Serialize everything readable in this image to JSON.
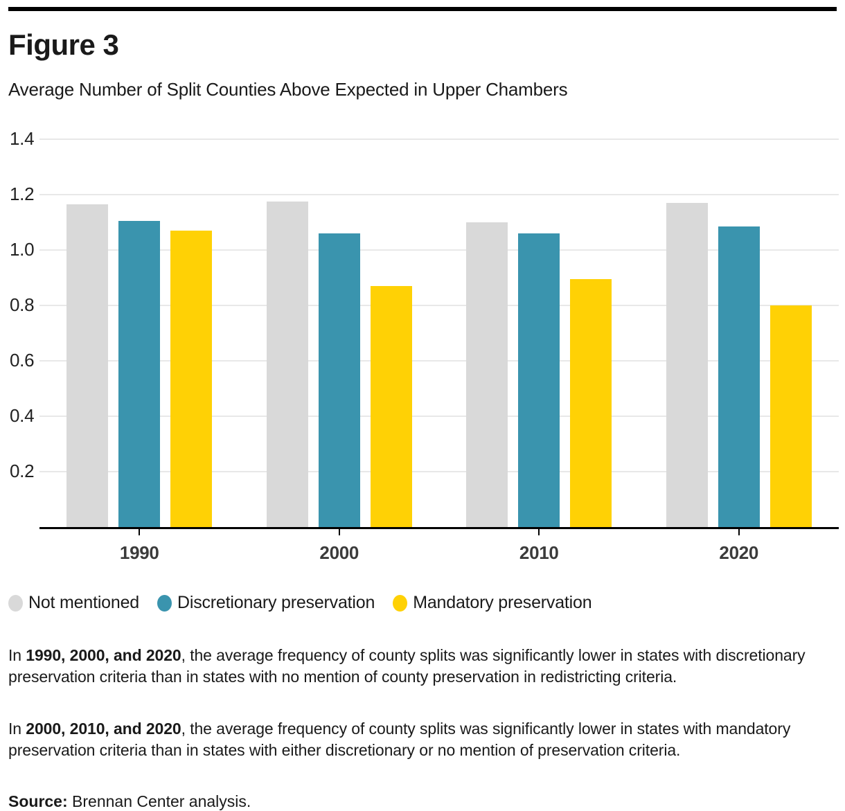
{
  "header": {
    "figure_label": "Figure 3",
    "title": "Average Number of Split Counties Above Expected in Upper Chambers"
  },
  "chart_data": {
    "type": "bar",
    "title": "Average Number of Split Counties Above Expected in Upper Chambers",
    "categories": [
      "1990",
      "2000",
      "2010",
      "2020"
    ],
    "series": [
      {
        "name": "Not mentioned",
        "color": "#d9d9d9",
        "values": [
          1.165,
          1.175,
          1.1,
          1.17
        ]
      },
      {
        "name": "Discretionary preservation",
        "color": "#3a94ae",
        "values": [
          1.105,
          1.06,
          1.06,
          1.085
        ]
      },
      {
        "name": "Mandatory preservation",
        "color": "#ffd105",
        "values": [
          1.07,
          0.87,
          0.895,
          0.8
        ]
      }
    ],
    "xlabel": "",
    "ylabel": "",
    "ylim": [
      0,
      1.4
    ],
    "yticks": [
      {
        "label": "1.4",
        "value": 1.4
      },
      {
        "label": "1.2",
        "value": 1.2
      },
      {
        "label": "1.0",
        "value": 1.0
      },
      {
        "label": "0.8",
        "value": 0.8
      },
      {
        "label": "0.6",
        "value": 0.6
      },
      {
        "label": "0.4",
        "value": 0.4
      },
      {
        "label": "0.2",
        "value": 0.2
      }
    ],
    "grid": true,
    "legend_position": "bottom"
  },
  "annotations": {
    "p1": {
      "prefix": "In ",
      "bold": "1990, 2000, and 2020",
      "rest": ", the average frequency of county splits was significantly lower in states with discretionary preservation criteria than in states with no mention of county preservation in redistricting criteria."
    },
    "p2": {
      "prefix": "In ",
      "bold": "2000, 2010, and 2020",
      "rest": ", the average frequency of county splits was significantly lower in states with mandatory preservation criteria than in states with either discretionary or no mention of preservation criteria."
    },
    "source": {
      "label": "Source:",
      "text": " Brennan Center analysis."
    }
  },
  "colors": {
    "axis": "#000000",
    "gridline": "#e8e8e8",
    "x_label": "#3b3b3b",
    "text": "#1a1a1a"
  }
}
